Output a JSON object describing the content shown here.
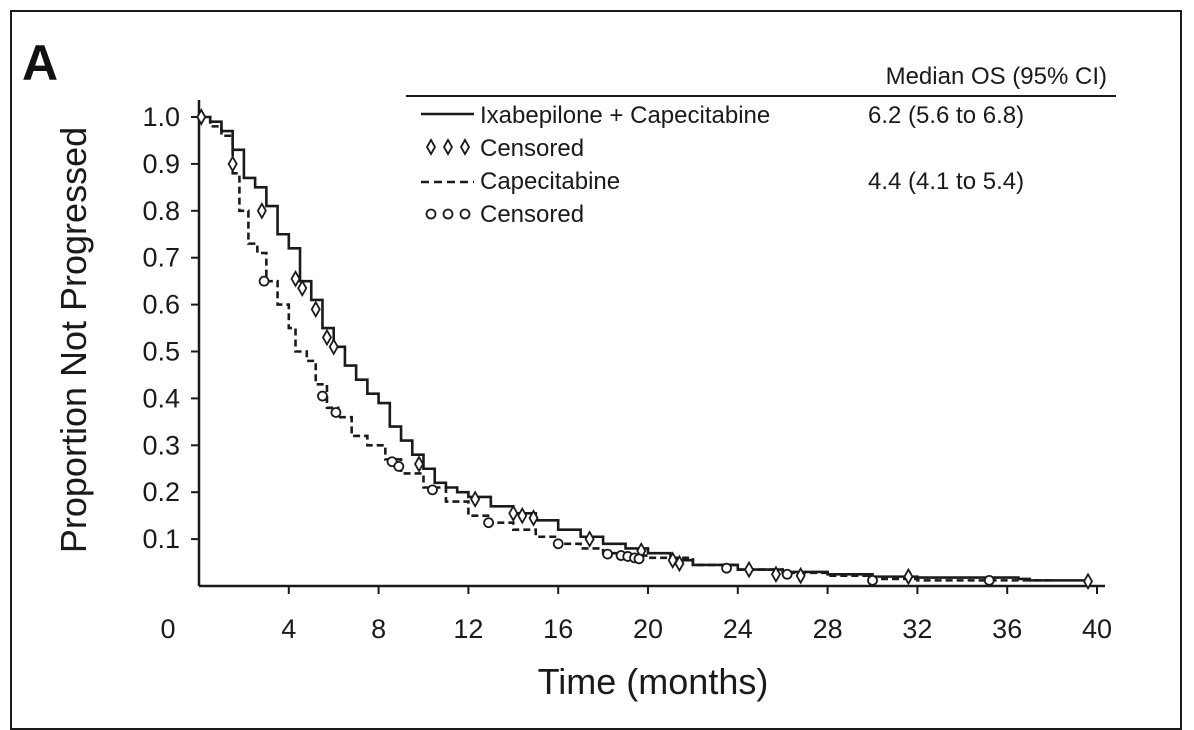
{
  "panel_label": "A",
  "legend": {
    "header": "Median OS (95% CI)",
    "entries": [
      {
        "label": "Ixabepilone + Capecitabine",
        "value": "6.2 (5.6 to 6.8)",
        "style": "solid"
      },
      {
        "label": "Censored",
        "value": "",
        "marker": "diamond"
      },
      {
        "label": "Capecitabine",
        "value": "4.4 (4.1 to 5.4)",
        "style": "dashed"
      },
      {
        "label": "Censored",
        "value": "",
        "marker": "circle"
      }
    ]
  },
  "chart_data": {
    "type": "line",
    "xlabel": "Time (months)",
    "ylabel": "Proportion Not Progressed",
    "xlim": [
      0,
      40
    ],
    "ylim": [
      0,
      1.05
    ],
    "x_ticks": [
      0,
      4,
      8,
      12,
      16,
      20,
      24,
      28,
      32,
      36,
      40
    ],
    "y_ticks": [
      0.1,
      0.2,
      0.3,
      0.4,
      0.5,
      0.6,
      0.7,
      0.8,
      0.9,
      1.0
    ],
    "x_tick_labels": [
      "0",
      "4",
      "8",
      "12",
      "16",
      "20",
      "24",
      "28",
      "32",
      "36",
      "40"
    ],
    "y_tick_labels": [
      "0.1",
      "0.2",
      "0.3",
      "0.4",
      "0.5",
      "0.6",
      "0.7",
      "0.8",
      "0.9",
      "1.0"
    ],
    "grid": false,
    "series": [
      {
        "name": "Ixabepilone + Capecitabine",
        "line_style": "solid",
        "points": [
          [
            0,
            1.0
          ],
          [
            0.5,
            0.99
          ],
          [
            1.0,
            0.97
          ],
          [
            1.5,
            0.93
          ],
          [
            2.0,
            0.87
          ],
          [
            2.5,
            0.85
          ],
          [
            3.0,
            0.81
          ],
          [
            3.5,
            0.75
          ],
          [
            4.0,
            0.72
          ],
          [
            4.5,
            0.65
          ],
          [
            5.0,
            0.61
          ],
          [
            5.5,
            0.55
          ],
          [
            6.0,
            0.51
          ],
          [
            6.5,
            0.47
          ],
          [
            7.0,
            0.44
          ],
          [
            7.5,
            0.41
          ],
          [
            8.0,
            0.39
          ],
          [
            8.5,
            0.34
          ],
          [
            9.0,
            0.31
          ],
          [
            9.5,
            0.28
          ],
          [
            10.0,
            0.25
          ],
          [
            10.5,
            0.22
          ],
          [
            11.0,
            0.21
          ],
          [
            11.5,
            0.2
          ],
          [
            12.0,
            0.19
          ],
          [
            13.0,
            0.17
          ],
          [
            14.0,
            0.155
          ],
          [
            15.0,
            0.14
          ],
          [
            16.0,
            0.12
          ],
          [
            17.0,
            0.105
          ],
          [
            18.0,
            0.09
          ],
          [
            19.0,
            0.08
          ],
          [
            20.0,
            0.07
          ],
          [
            21.0,
            0.055
          ],
          [
            22.0,
            0.045
          ],
          [
            24.0,
            0.035
          ],
          [
            26.0,
            0.03
          ],
          [
            28.0,
            0.025
          ],
          [
            30.0,
            0.02
          ],
          [
            32.0,
            0.018
          ],
          [
            36.5,
            0.015
          ],
          [
            37.0,
            0.012
          ],
          [
            39.6,
            0.012
          ]
        ],
        "censored": [
          [
            0.1,
            1.0
          ],
          [
            1.5,
            0.9
          ],
          [
            2.8,
            0.8
          ],
          [
            4.3,
            0.655
          ],
          [
            4.6,
            0.635
          ],
          [
            5.2,
            0.59
          ],
          [
            5.7,
            0.53
          ],
          [
            6.0,
            0.51
          ],
          [
            9.8,
            0.26
          ],
          [
            12.3,
            0.185
          ],
          [
            14.0,
            0.155
          ],
          [
            14.4,
            0.15
          ],
          [
            14.9,
            0.145
          ],
          [
            17.4,
            0.1
          ],
          [
            19.7,
            0.075
          ],
          [
            21.1,
            0.055
          ],
          [
            21.4,
            0.048
          ],
          [
            24.5,
            0.035
          ],
          [
            25.7,
            0.025
          ],
          [
            26.8,
            0.022
          ],
          [
            31.6,
            0.02
          ],
          [
            39.6,
            0.01
          ]
        ]
      },
      {
        "name": "Capecitabine",
        "line_style": "dashed",
        "points": [
          [
            0,
            1.0
          ],
          [
            0.5,
            0.98
          ],
          [
            1.0,
            0.96
          ],
          [
            1.5,
            0.88
          ],
          [
            1.8,
            0.8
          ],
          [
            2.2,
            0.73
          ],
          [
            2.6,
            0.71
          ],
          [
            3.0,
            0.65
          ],
          [
            3.5,
            0.6
          ],
          [
            4.0,
            0.55
          ],
          [
            4.3,
            0.5
          ],
          [
            4.8,
            0.48
          ],
          [
            5.2,
            0.43
          ],
          [
            5.7,
            0.38
          ],
          [
            6.2,
            0.36
          ],
          [
            6.8,
            0.32
          ],
          [
            7.5,
            0.3
          ],
          [
            8.3,
            0.27
          ],
          [
            9.0,
            0.24
          ],
          [
            10.0,
            0.21
          ],
          [
            11.0,
            0.18
          ],
          [
            12.0,
            0.15
          ],
          [
            13.0,
            0.135
          ],
          [
            14.0,
            0.12
          ],
          [
            15.0,
            0.105
          ],
          [
            16.0,
            0.09
          ],
          [
            17.0,
            0.08
          ],
          [
            18.0,
            0.07
          ],
          [
            19.0,
            0.065
          ],
          [
            20.0,
            0.06
          ],
          [
            22.0,
            0.045
          ],
          [
            24.0,
            0.035
          ],
          [
            26.0,
            0.028
          ],
          [
            28.0,
            0.022
          ],
          [
            30.0,
            0.015
          ],
          [
            32.0,
            0.012
          ],
          [
            35.2,
            0.012
          ],
          [
            38.0,
            0.01
          ]
        ],
        "censored": [
          [
            2.9,
            0.65
          ],
          [
            5.5,
            0.405
          ],
          [
            6.1,
            0.37
          ],
          [
            8.6,
            0.265
          ],
          [
            8.9,
            0.255
          ],
          [
            10.4,
            0.205
          ],
          [
            12.9,
            0.135
          ],
          [
            16.0,
            0.09
          ],
          [
            18.2,
            0.068
          ],
          [
            18.8,
            0.065
          ],
          [
            19.1,
            0.063
          ],
          [
            19.4,
            0.06
          ],
          [
            19.6,
            0.058
          ],
          [
            23.5,
            0.038
          ],
          [
            26.2,
            0.025
          ],
          [
            30.0,
            0.012
          ],
          [
            35.2,
            0.012
          ]
        ]
      }
    ]
  }
}
